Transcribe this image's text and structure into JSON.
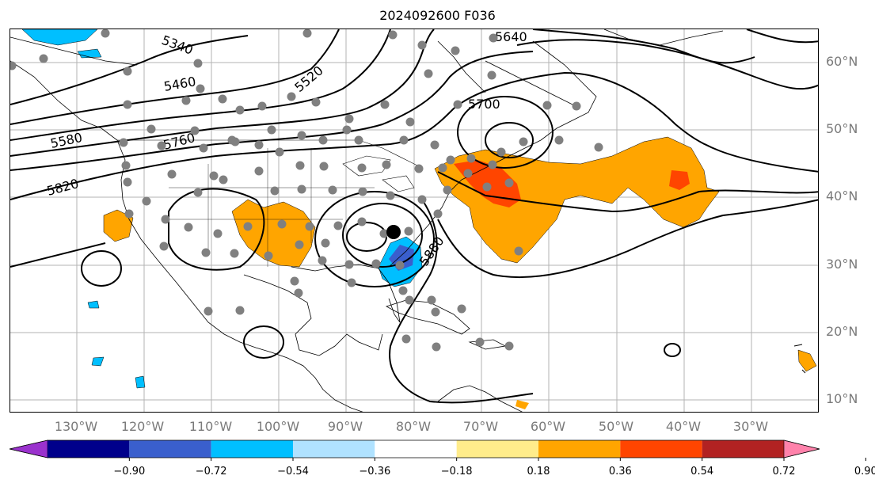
{
  "title": "2024092600 F036",
  "lat_labels": [
    "60°N",
    "50°N",
    "40°N",
    "30°N",
    "20°N",
    "10°N"
  ],
  "lon_labels": [
    "130°W",
    "120°W",
    "110°W",
    "100°W",
    "90°W",
    "80°W",
    "70°W",
    "60°W",
    "50°W",
    "40°W",
    "30°W"
  ],
  "contour_labels": [
    "5340",
    "5460",
    "5520",
    "5580",
    "5640",
    "5700",
    "5760",
    "5820",
    "5880"
  ],
  "colorbar": {
    "ticks": [
      "−0.90",
      "−0.72",
      "−0.54",
      "−0.36",
      "−0.18",
      "0.18",
      "0.36",
      "0.54",
      "0.72",
      "0.90"
    ],
    "colors": [
      "#9a32cd",
      "#00008b",
      "#3a5fcd",
      "#00bfff",
      "#b0e2ff",
      "#ffffff",
      "#ffec8b",
      "#ffa500",
      "#ff4500",
      "#b22222",
      "#ff82ab"
    ],
    "extend": "both"
  },
  "colors": {
    "station_dot": "#808080",
    "storm_center": "#000000",
    "grid": "#b3b3b3",
    "axis_label": "#7a7a7a"
  }
}
